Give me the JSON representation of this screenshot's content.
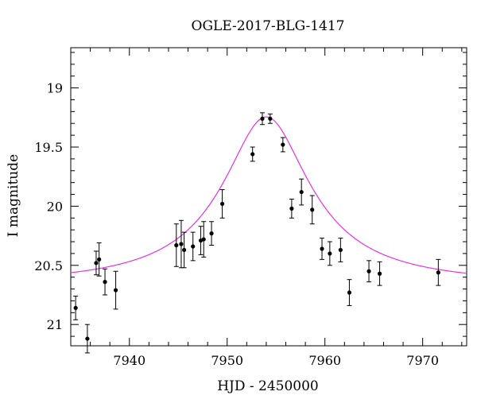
{
  "chart_data": {
    "type": "scatter",
    "title": "OGLE-2017-BLG-1417",
    "xlabel": "HJD - 2450000",
    "ylabel": "I magnitude",
    "xlim": [
      7934.0,
      7974.5
    ],
    "ylim": [
      21.18,
      18.66
    ],
    "y_inverted": true,
    "grid": false,
    "x_ticks": [
      {
        "value": 7940,
        "label": "7940"
      },
      {
        "value": 7950,
        "label": "7950"
      },
      {
        "value": 7960,
        "label": "7960"
      },
      {
        "value": 7970,
        "label": "7970"
      }
    ],
    "y_ticks": [
      {
        "value": 19.0,
        "label": "19"
      },
      {
        "value": 19.5,
        "label": "19.5"
      },
      {
        "value": 20.0,
        "label": "20"
      },
      {
        "value": 20.5,
        "label": "20.5"
      },
      {
        "value": 21.0,
        "label": "21"
      }
    ],
    "series": [
      {
        "kind": "points_with_errors",
        "color": "#000000",
        "points": [
          {
            "x": 7934.5,
            "y": 20.86,
            "err": 0.1
          },
          {
            "x": 7935.7,
            "y": 21.12,
            "err": 0.12
          },
          {
            "x": 7936.6,
            "y": 20.48,
            "err": 0.1
          },
          {
            "x": 7936.9,
            "y": 20.45,
            "err": 0.14
          },
          {
            "x": 7937.5,
            "y": 20.64,
            "err": 0.11
          },
          {
            "x": 7938.6,
            "y": 20.71,
            "err": 0.16
          },
          {
            "x": 7944.8,
            "y": 20.33,
            "err": 0.18
          },
          {
            "x": 7945.3,
            "y": 20.32,
            "err": 0.2
          },
          {
            "x": 7945.6,
            "y": 20.37,
            "err": 0.15
          },
          {
            "x": 7946.5,
            "y": 20.34,
            "err": 0.12
          },
          {
            "x": 7947.3,
            "y": 20.29,
            "err": 0.12
          },
          {
            "x": 7947.6,
            "y": 20.28,
            "err": 0.15
          },
          {
            "x": 7948.4,
            "y": 20.23,
            "err": 0.1
          },
          {
            "x": 7949.5,
            "y": 19.98,
            "err": 0.12
          },
          {
            "x": 7952.6,
            "y": 19.56,
            "err": 0.06
          },
          {
            "x": 7953.6,
            "y": 19.26,
            "err": 0.05
          },
          {
            "x": 7954.4,
            "y": 19.26,
            "err": 0.04
          },
          {
            "x": 7955.7,
            "y": 19.48,
            "err": 0.06
          },
          {
            "x": 7956.6,
            "y": 20.02,
            "err": 0.08
          },
          {
            "x": 7957.6,
            "y": 19.88,
            "err": 0.11
          },
          {
            "x": 7958.7,
            "y": 20.03,
            "err": 0.12
          },
          {
            "x": 7959.7,
            "y": 20.36,
            "err": 0.09
          },
          {
            "x": 7960.5,
            "y": 20.4,
            "err": 0.1
          },
          {
            "x": 7961.6,
            "y": 20.37,
            "err": 0.1
          },
          {
            "x": 7962.5,
            "y": 20.73,
            "err": 0.11
          },
          {
            "x": 7964.5,
            "y": 20.55,
            "err": 0.09
          },
          {
            "x": 7965.6,
            "y": 20.57,
            "err": 0.1
          },
          {
            "x": 7971.6,
            "y": 20.56,
            "err": 0.11
          }
        ]
      },
      {
        "kind": "model_curve",
        "color": "#e632e6",
        "baseline_mag": 20.67,
        "peak_mag": 19.245,
        "t0": 7954.0,
        "width": 4.0
      }
    ]
  }
}
